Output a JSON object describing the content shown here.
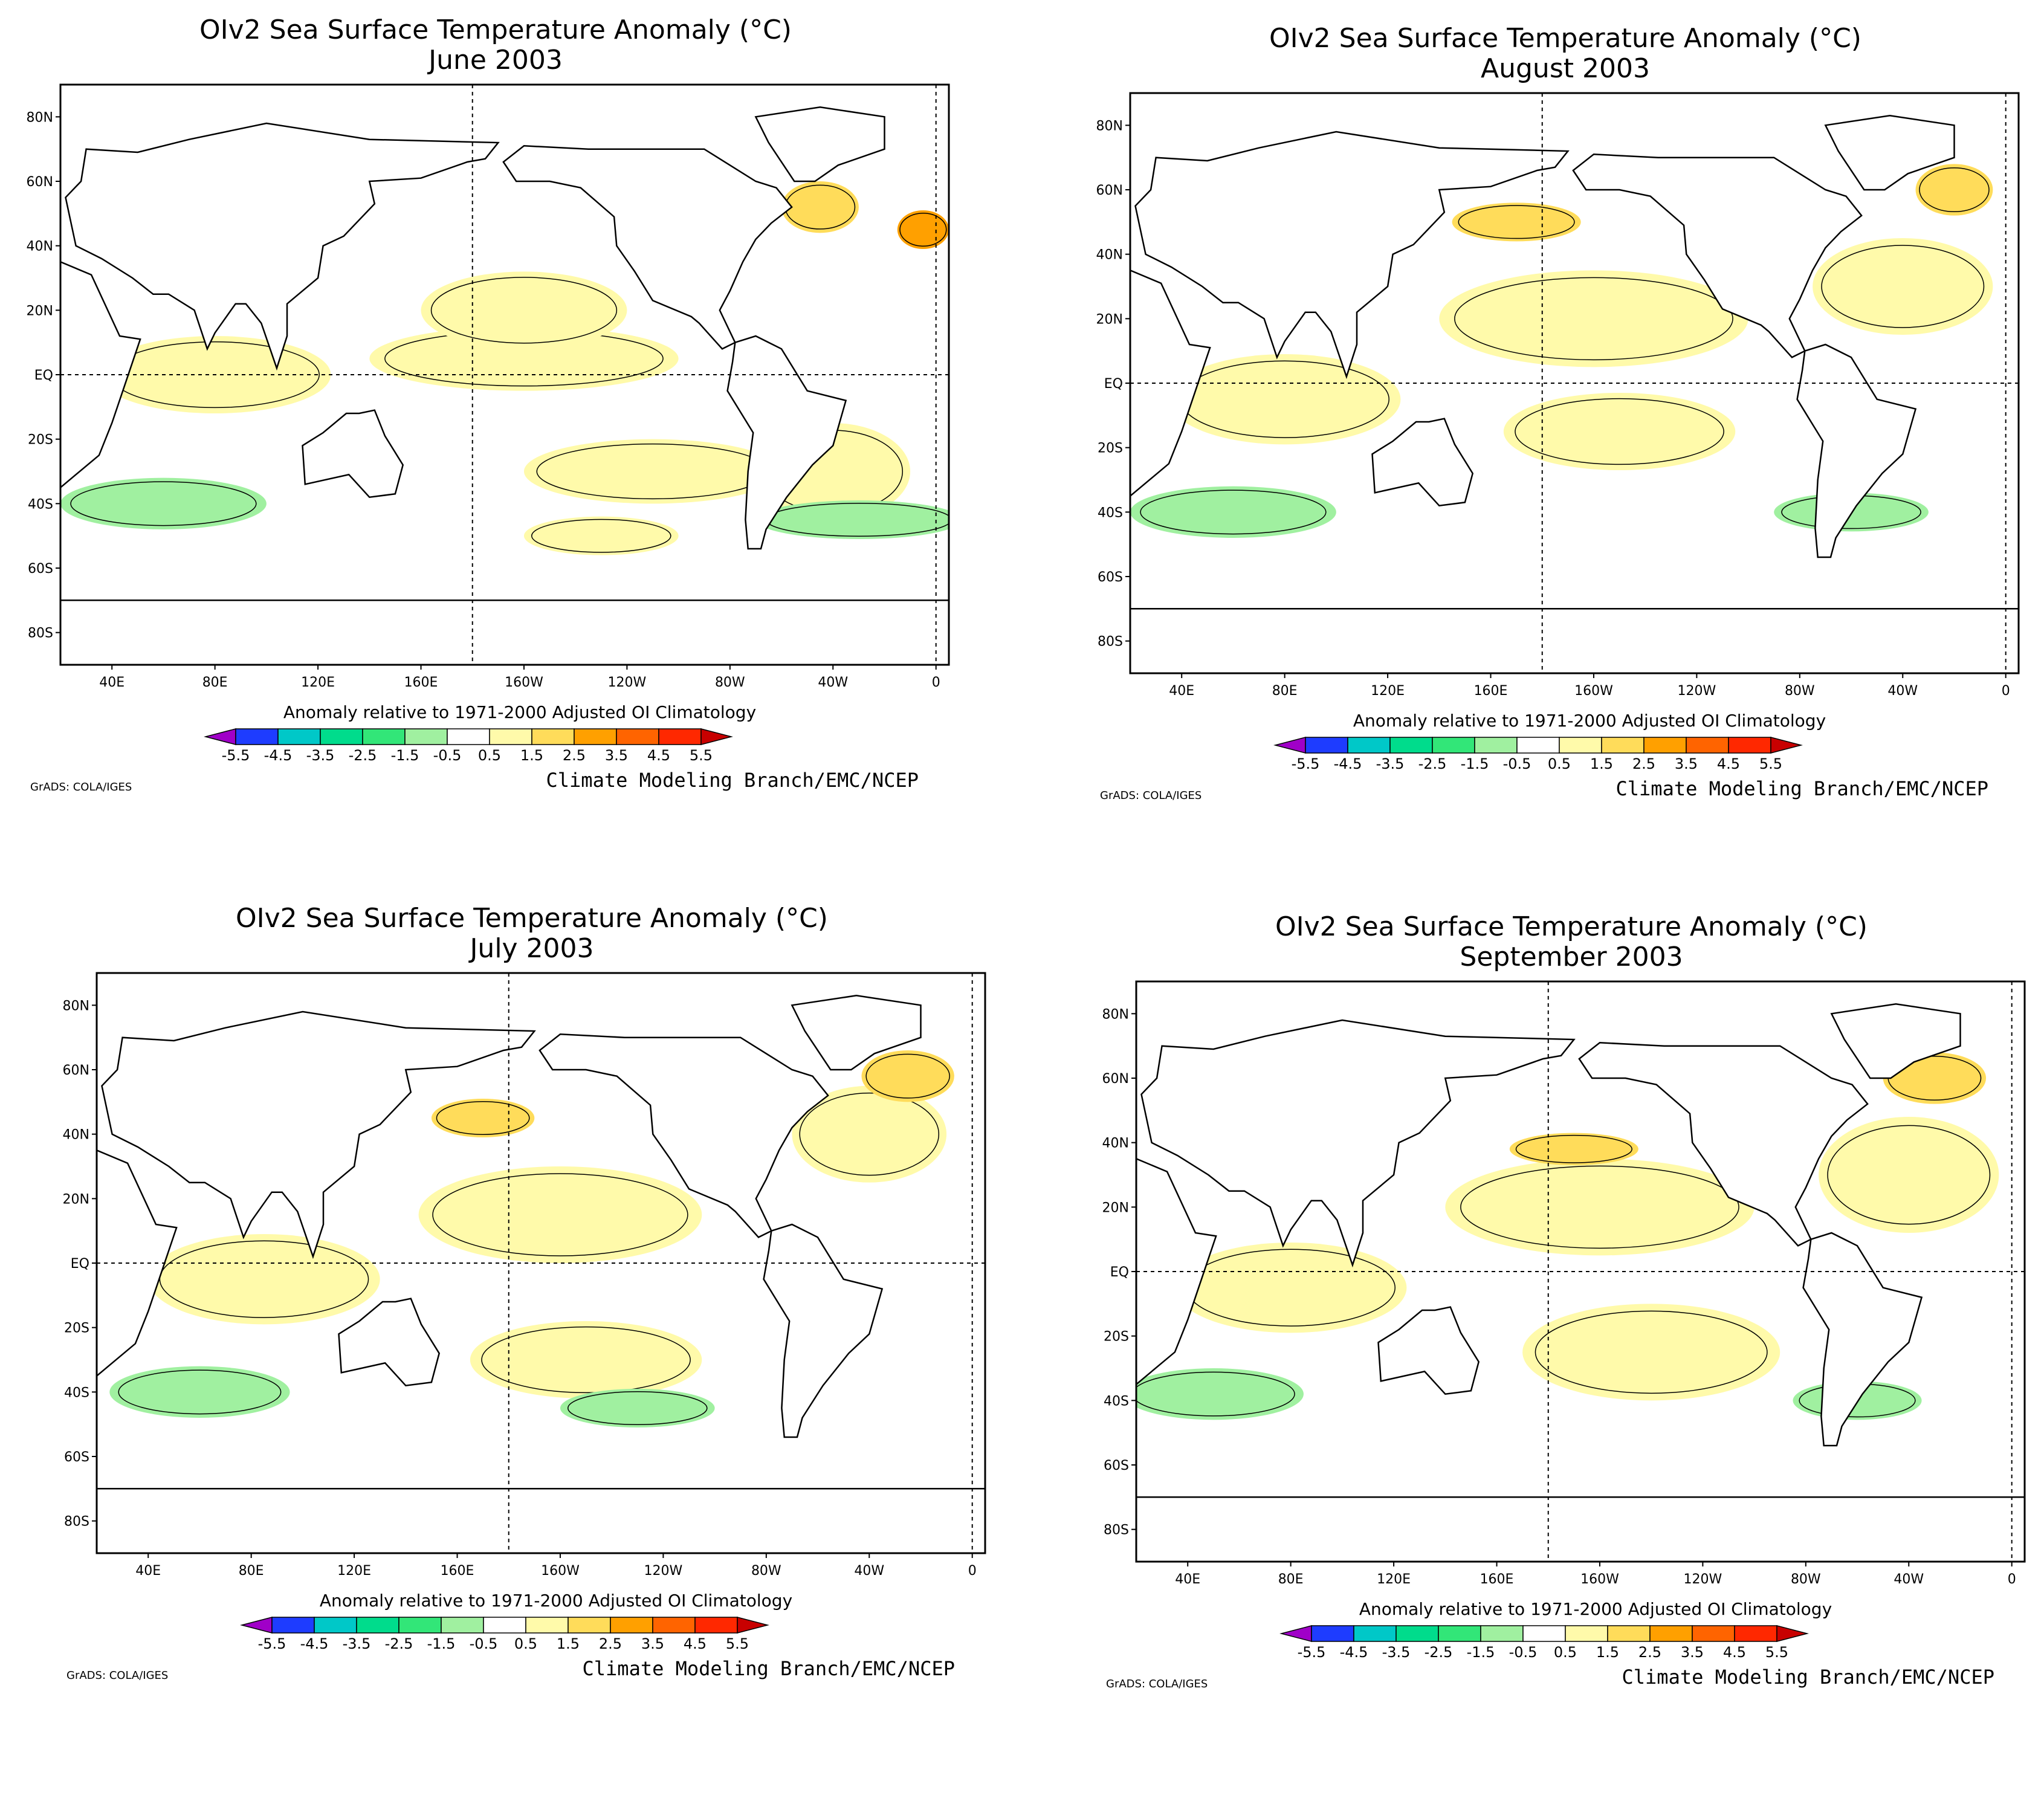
{
  "panels": [
    {
      "id": "june",
      "title": "OIv2 Sea Surface Temperature Anomaly (°C)",
      "subtitle": "June 2003"
    },
    {
      "id": "august",
      "title": "OIv2 Sea Surface Temperature Anomaly (°C)",
      "subtitle": "August 2003"
    },
    {
      "id": "july",
      "title": "OIv2 Sea Surface Temperature Anomaly (°C)",
      "subtitle": "July 2003"
    },
    {
      "id": "september",
      "title": "OIv2 Sea Surface Temperature Anomaly (°C)",
      "subtitle": "September 2003"
    }
  ],
  "lat_labels": [
    "80N",
    "60N",
    "40N",
    "20N",
    "EQ",
    "20S",
    "40S",
    "60S",
    "80S"
  ],
  "lon_labels": [
    "40E",
    "80E",
    "120E",
    "160E",
    "160W",
    "120W",
    "80W",
    "40W",
    "0"
  ],
  "legend": {
    "caption": "Anomaly relative to 1971-2000 Adjusted OI Climatology",
    "ticks": [
      "-5.5",
      "-4.5",
      "-3.5",
      "-2.5",
      "-1.5",
      "-0.5",
      "0.5",
      "1.5",
      "2.5",
      "3.5",
      "4.5",
      "5.5"
    ],
    "colors": [
      "#a000c8",
      "#1e3cff",
      "#00c8c8",
      "#00dc8c",
      "#32e678",
      "#a0f0a0",
      "#ffffff",
      "#fffaaa",
      "#ffdc5a",
      "#ffa000",
      "#ff6400",
      "#ff2800",
      "#c80000"
    ]
  },
  "credit": "Climate Modeling Branch/EMC/NCEP",
  "software": "GrADS: COLA/IGES",
  "colors": {
    "land": "#ffffff",
    "warm_weak": "#fffaaa",
    "warm_mid": "#ffdc5a",
    "warm_strong": "#ffa000",
    "cool_weak": "#a0f0a0"
  }
}
